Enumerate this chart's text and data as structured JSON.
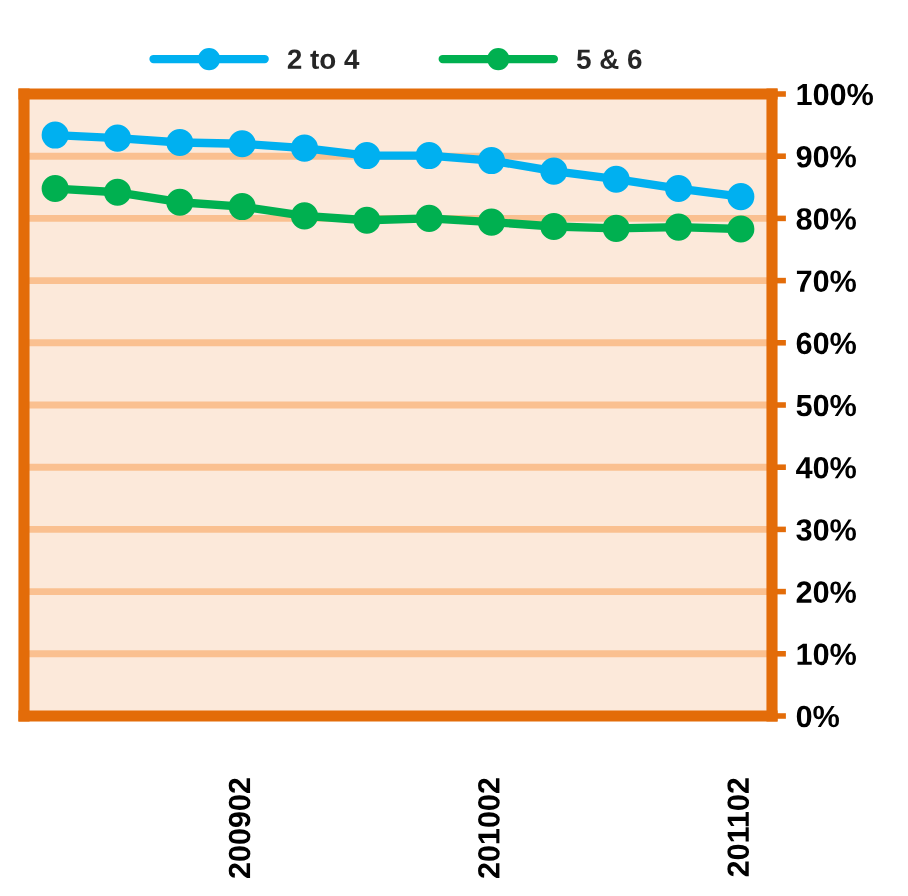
{
  "chart_data": {
    "type": "line",
    "categories": [
      null,
      null,
      null,
      "200902",
      null,
      null,
      null,
      "201002",
      null,
      null,
      null,
      "201102"
    ],
    "series": [
      {
        "name": "2 to 4",
        "color": "#00b0f0",
        "values": [
          93.4,
          92.9,
          92.2,
          92.0,
          91.3,
          90.1,
          90.1,
          89.3,
          87.6,
          86.3,
          84.8,
          83.5
        ]
      },
      {
        "name": "5 & 6",
        "color": "#00b050",
        "values": [
          84.8,
          84.2,
          82.6,
          81.9,
          80.4,
          79.7,
          80.0,
          79.4,
          78.7,
          78.4,
          78.6,
          78.3
        ]
      }
    ],
    "ylim": [
      0,
      100
    ],
    "yticks": [
      {
        "value": 0,
        "label": "0%"
      },
      {
        "value": 10,
        "label": "10%"
      },
      {
        "value": 20,
        "label": "20%"
      },
      {
        "value": 30,
        "label": "30%"
      },
      {
        "value": 40,
        "label": "40%"
      },
      {
        "value": 50,
        "label": "50%"
      },
      {
        "value": 60,
        "label": "60%"
      },
      {
        "value": 70,
        "label": "70%"
      },
      {
        "value": 80,
        "label": "80%"
      },
      {
        "value": 90,
        "label": "90%"
      },
      {
        "value": 100,
        "label": "100%"
      }
    ],
    "grid": "y",
    "legend": "top",
    "marker": "circle",
    "line_style": "solid"
  }
}
